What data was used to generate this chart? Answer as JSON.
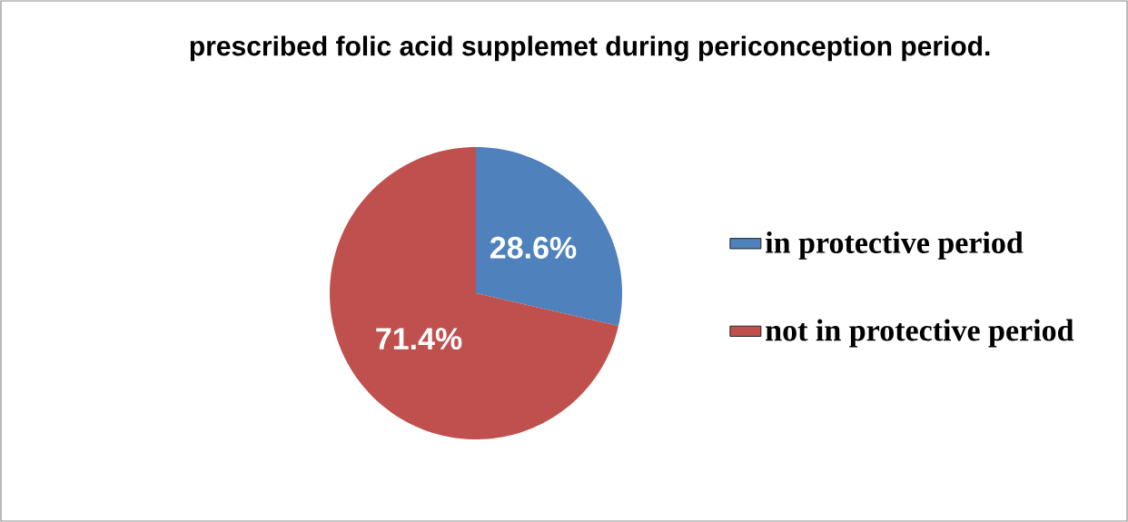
{
  "chart_data": {
    "type": "pie",
    "title": "prescribed  folic acid supplemet during periconception period.",
    "categories": [
      "in  protective period",
      "not in protective period"
    ],
    "values": [
      28.6,
      71.4
    ],
    "value_labels": [
      "28.6%",
      "71.4%"
    ],
    "colors": [
      "#4f81bd",
      "#c0504d"
    ],
    "legend": "right"
  }
}
